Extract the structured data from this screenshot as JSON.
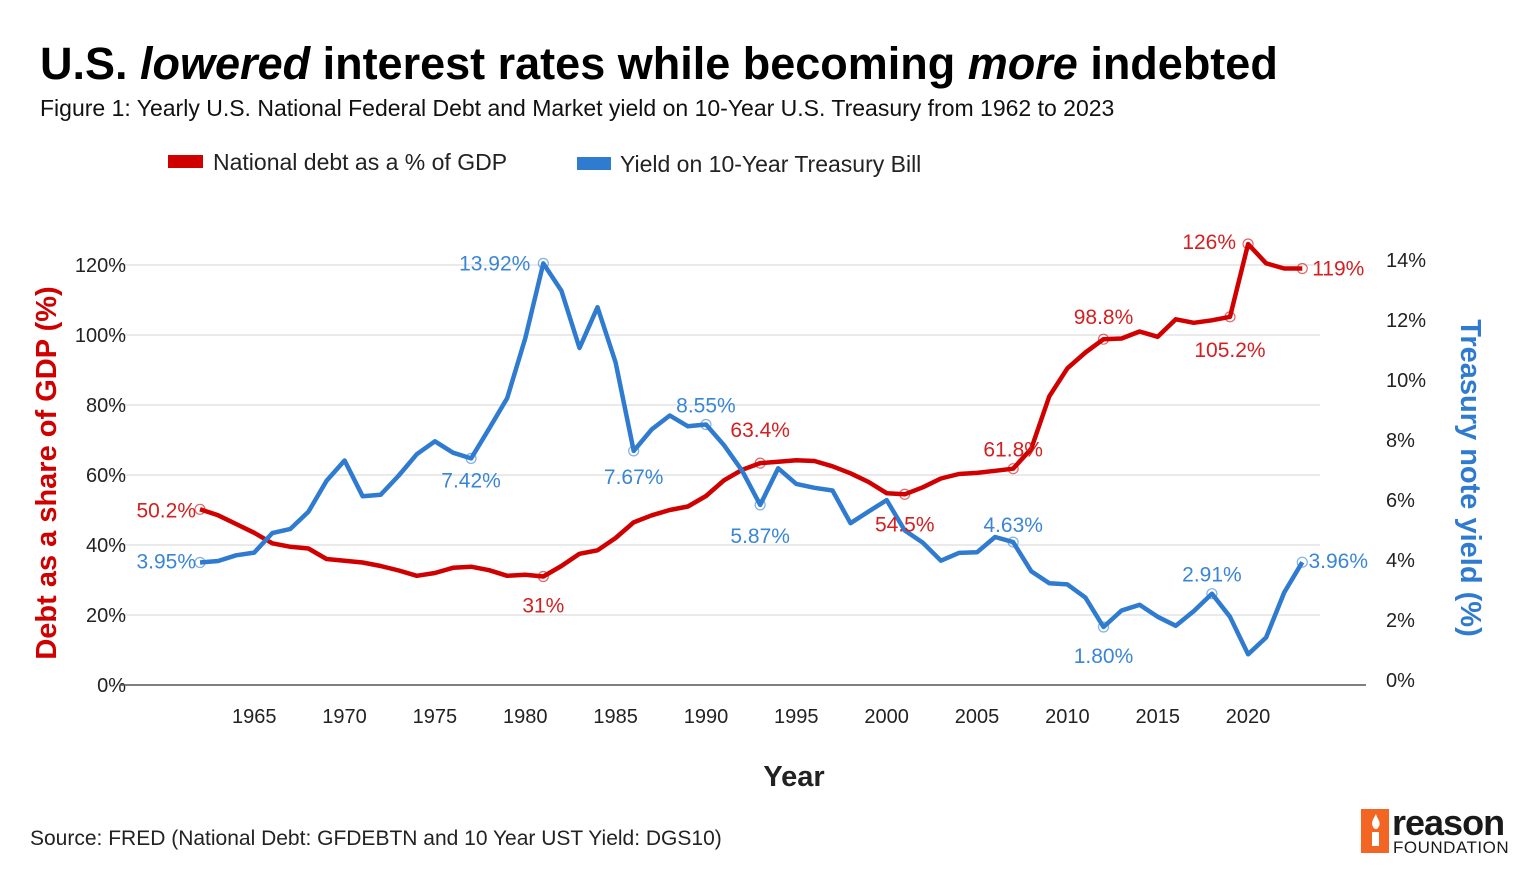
{
  "title_segments": [
    {
      "text": "U.S. ",
      "italic": false
    },
    {
      "text": "lowered",
      "italic": true
    },
    {
      "text": " interest rates while becoming ",
      "italic": false
    },
    {
      "text": "more",
      "italic": true
    },
    {
      "text": " indebted",
      "italic": false
    }
  ],
  "subtitle": "Figure 1: Yearly U.S. National Federal Debt and Market yield on 10-Year U.S. Treasury from 1962 to 2023",
  "source": "Source: FRED (National Debt: GFDEBTN and 10 Year UST Yield: DGS10)",
  "logo": {
    "word": "reason",
    "sub": "FOUNDATION",
    "color": "#f26522"
  },
  "chart_data": {
    "type": "line",
    "xlabel": "Year",
    "ylabel_left": "Debt as a share of GDP (%)",
    "ylabel_right": "Treasury note yield (%)",
    "x_ticks": [
      1965,
      1970,
      1975,
      1980,
      1985,
      1990,
      1995,
      2000,
      2005,
      2010,
      2015,
      2020
    ],
    "y_left_ticks": [
      "0%",
      "20%",
      "40%",
      "60%",
      "80%",
      "100%",
      "120%"
    ],
    "y_left_range": [
      0,
      120
    ],
    "y_right_ticks": [
      "0%",
      "2%",
      "4%",
      "6%",
      "8%",
      "10%",
      "12%",
      "14%"
    ],
    "y_right_range": [
      0,
      14
    ],
    "grid": true,
    "legend_position": "top-left",
    "x": [
      1962,
      1963,
      1964,
      1965,
      1966,
      1967,
      1968,
      1969,
      1970,
      1971,
      1972,
      1973,
      1974,
      1975,
      1976,
      1977,
      1978,
      1979,
      1980,
      1981,
      1982,
      1983,
      1984,
      1985,
      1986,
      1987,
      1988,
      1989,
      1990,
      1991,
      1992,
      1993,
      1994,
      1995,
      1996,
      1997,
      1998,
      1999,
      2000,
      2001,
      2002,
      2003,
      2004,
      2005,
      2006,
      2007,
      2008,
      2009,
      2010,
      2011,
      2012,
      2013,
      2014,
      2015,
      2016,
      2017,
      2018,
      2019,
      2020,
      2021,
      2022,
      2023
    ],
    "series": [
      {
        "name": "National debt as a % of GDP",
        "axis": "left",
        "color": "#d00000",
        "values": [
          50.2,
          48.5,
          46,
          43.5,
          40.5,
          39.5,
          39,
          36,
          35.5,
          35,
          34,
          32.7,
          31.2,
          32,
          33.5,
          33.8,
          32.8,
          31.2,
          31.5,
          31,
          34,
          37.5,
          38.5,
          42,
          46.5,
          48.5,
          50,
          51,
          54,
          58.5,
          61.5,
          63.4,
          63.8,
          64.2,
          64,
          62.5,
          60.5,
          58,
          54.8,
          54.5,
          56.5,
          59,
          60.3,
          60.6,
          61.2,
          61.8,
          67.5,
          82.5,
          90.5,
          95,
          98.8,
          99,
          101,
          99.5,
          104.5,
          103.5,
          104.2,
          105.2,
          126,
          120.5,
          119,
          119
        ],
        "annotations": [
          {
            "year": 1962,
            "label": "50.2%"
          },
          {
            "year": 1981,
            "label": "31%"
          },
          {
            "year": 1993,
            "label": "63.4%"
          },
          {
            "year": 2001,
            "label": "54.5%"
          },
          {
            "year": 2007,
            "label": "61.8%"
          },
          {
            "year": 2012,
            "label": "98.8%"
          },
          {
            "year": 2019,
            "label": "105.2%"
          },
          {
            "year": 2020,
            "label": "126%"
          },
          {
            "year": 2023,
            "label": "119%"
          }
        ]
      },
      {
        "name": "Yield on 10-Year Treasury Bill",
        "axis": "right",
        "color": "#2f7bd0",
        "values": [
          3.95,
          4.0,
          4.19,
          4.28,
          4.93,
          5.07,
          5.64,
          6.67,
          7.35,
          6.16,
          6.21,
          6.85,
          7.56,
          7.99,
          7.61,
          7.42,
          8.41,
          9.43,
          11.43,
          13.92,
          13.01,
          11.1,
          12.46,
          10.62,
          7.67,
          8.39,
          8.85,
          8.49,
          8.55,
          7.86,
          7.01,
          5.87,
          7.09,
          6.57,
          6.44,
          6.35,
          5.26,
          5.65,
          6.03,
          5.02,
          4.61,
          4.01,
          4.27,
          4.29,
          4.8,
          4.63,
          3.66,
          3.26,
          3.22,
          2.78,
          1.8,
          2.35,
          2.54,
          2.14,
          1.84,
          2.33,
          2.91,
          2.14,
          0.89,
          1.45,
          2.95,
          3.96
        ],
        "annotations": [
          {
            "year": 1962,
            "label": "3.95%"
          },
          {
            "year": 1977,
            "label": "7.42%"
          },
          {
            "year": 1981,
            "label": "13.92%"
          },
          {
            "year": 1986,
            "label": "7.67%"
          },
          {
            "year": 1990,
            "label": "8.55%"
          },
          {
            "year": 1993,
            "label": "5.87%"
          },
          {
            "year": 2007,
            "label": "4.63%"
          },
          {
            "year": 2012,
            "label": "1.80%"
          },
          {
            "year": 2018,
            "label": "2.91%"
          },
          {
            "year": 2023,
            "label": "3.96%"
          }
        ]
      }
    ]
  }
}
